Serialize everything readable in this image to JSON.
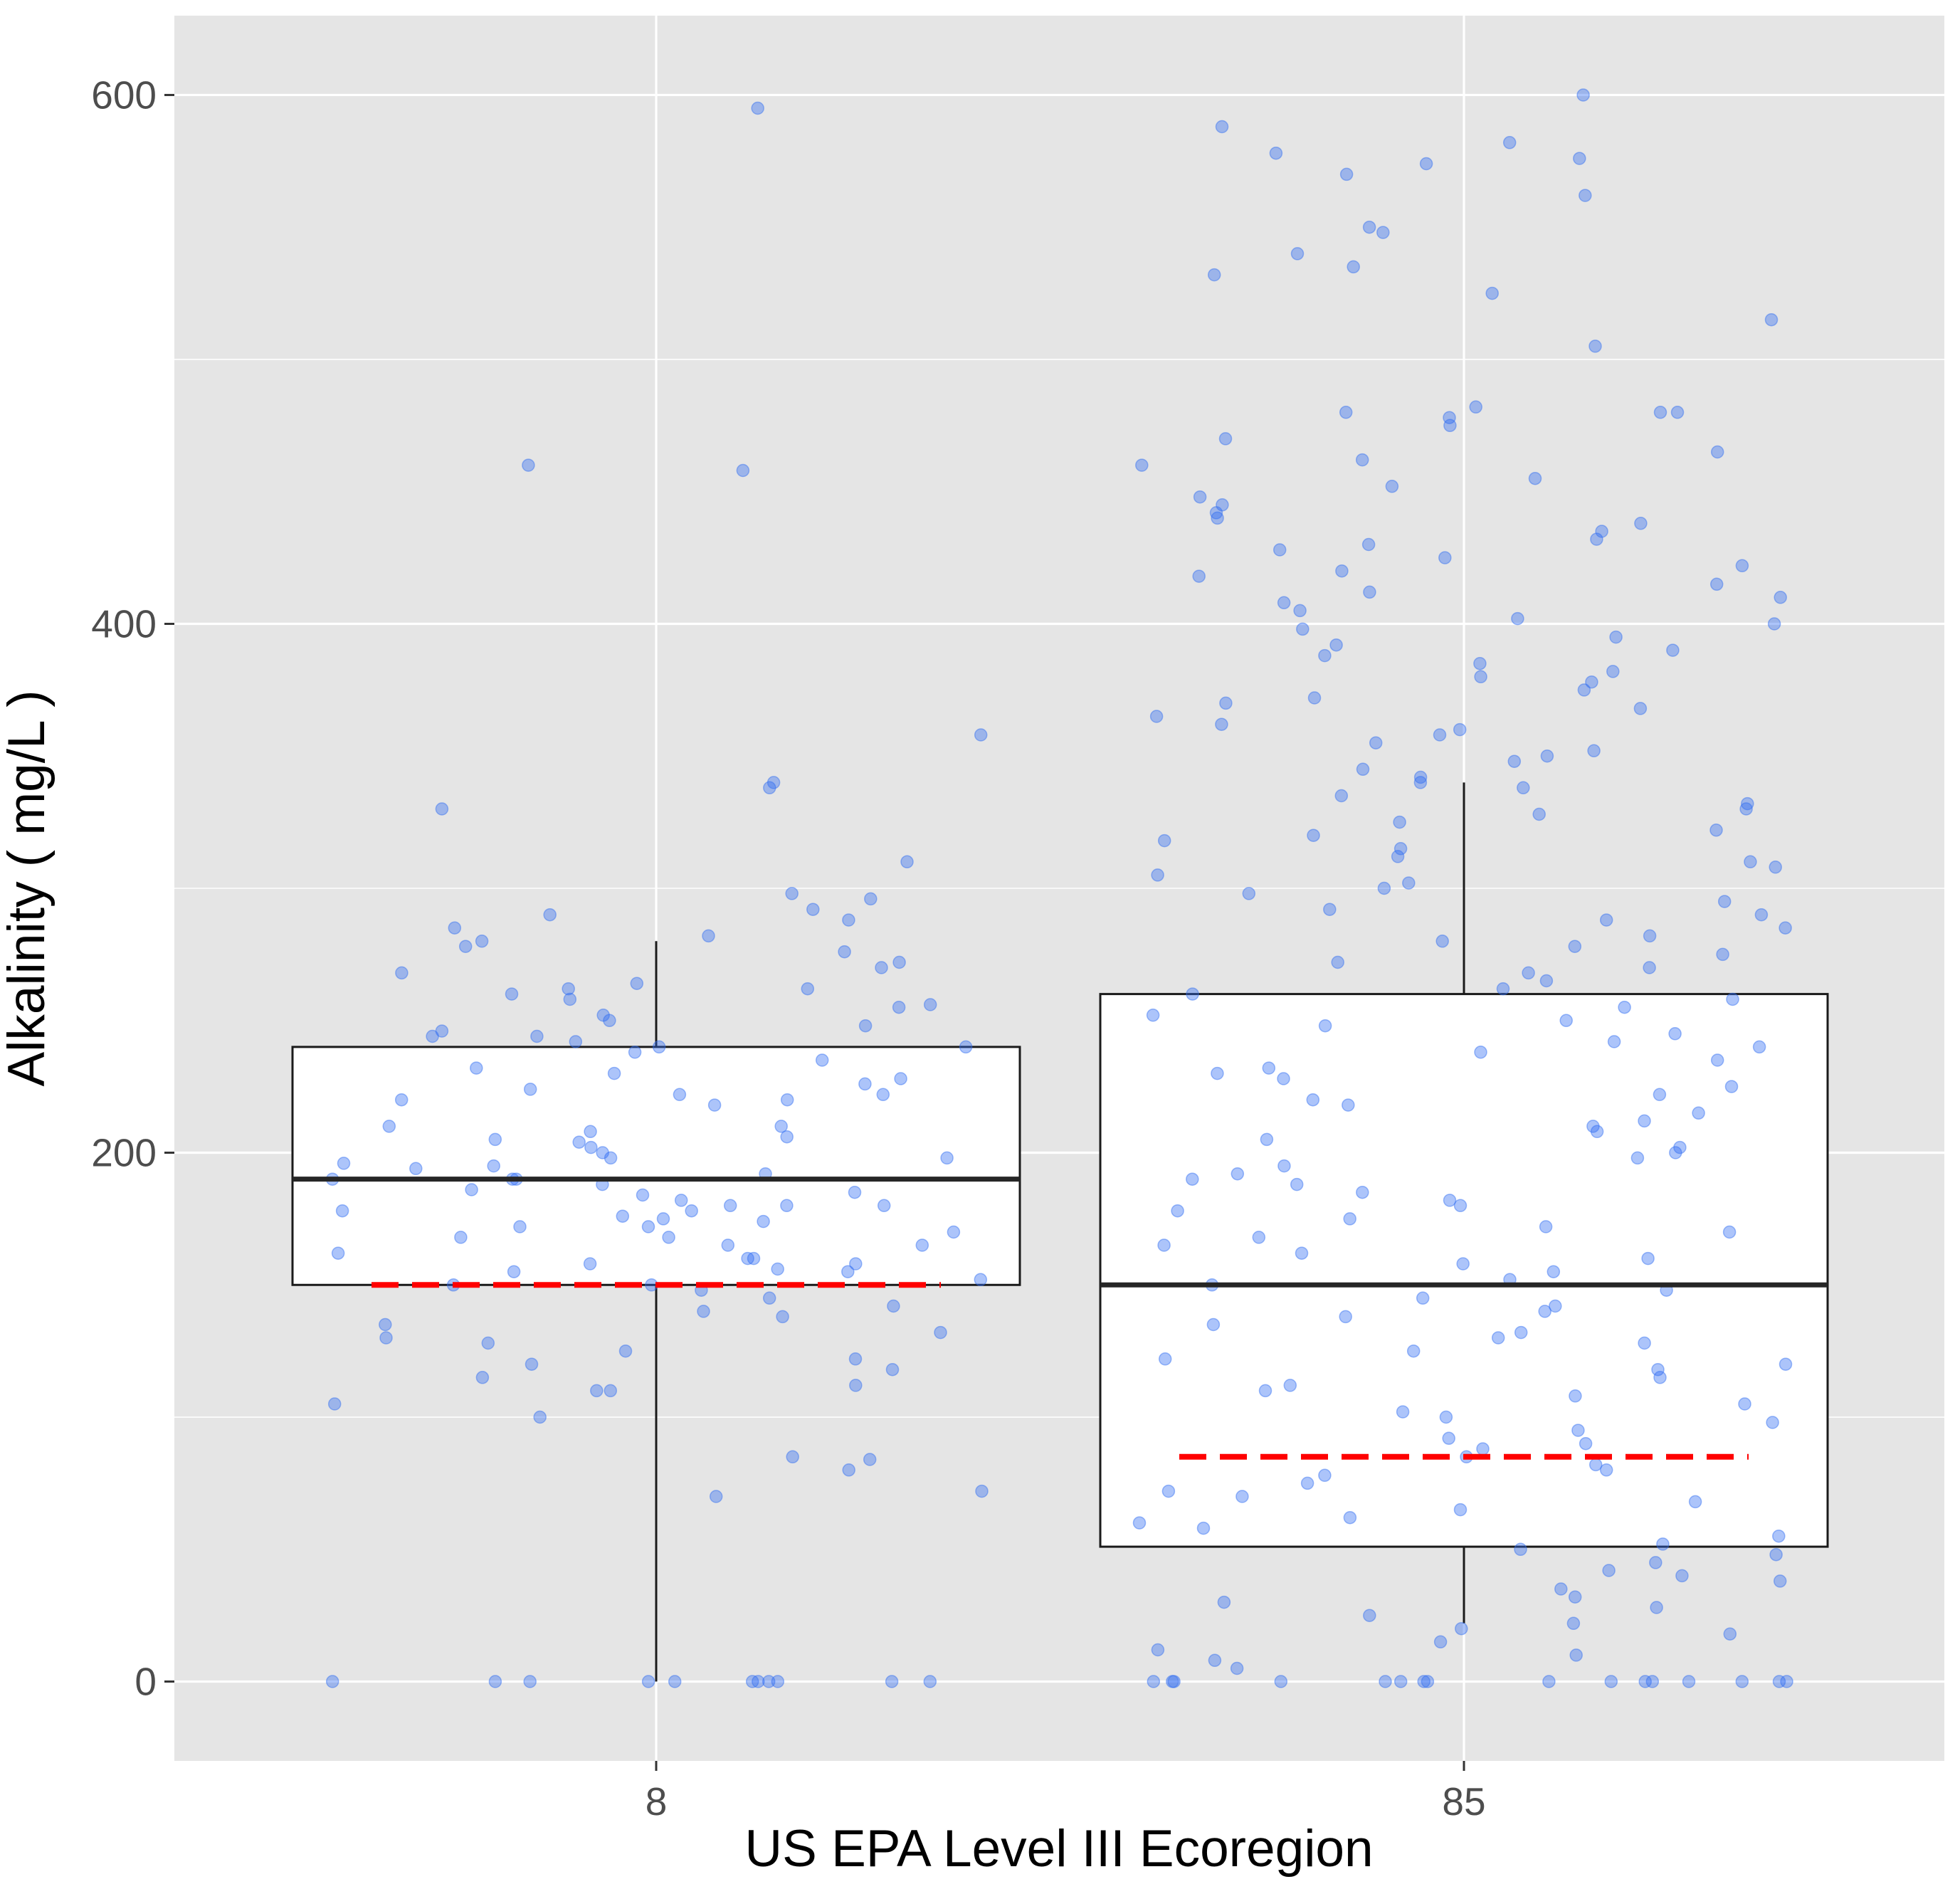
{
  "chart_data": {
    "type": "box",
    "xlabel": "US EPA Level III Ecoregion",
    "ylabel": "Alkalinity ( mg/L )",
    "categories": [
      "8",
      "85"
    ],
    "ylim": [
      -30,
      630
    ],
    "yticks": [
      0,
      200,
      400,
      600
    ],
    "grid": true,
    "legend": "none",
    "colors": {
      "panel": "#e5e5e5",
      "gridline": "#ffffff",
      "points": "#2f6cf2",
      "box_fill": "#ffffff",
      "box_line": "#1a1a1a",
      "dashed_line": "#ff0000"
    },
    "boxes": [
      {
        "category": "8",
        "lower_whisker": 0,
        "q1": 150,
        "median": 190,
        "q3": 240,
        "upper_whisker": 280,
        "dashed_value": 150
      },
      {
        "category": "85",
        "lower_whisker": 22,
        "q1": 51,
        "median": 150,
        "q3": 260,
        "upper_whisker": 340,
        "dashed_value": 85
      }
    ],
    "series": [
      {
        "category": "8",
        "values": [
          595,
          460,
          458,
          358,
          340,
          338,
          330,
          310,
          298,
          296,
          292,
          290,
          288,
          285,
          282,
          280,
          278,
          276,
          272,
          270,
          268,
          264,
          262,
          262,
          260,
          258,
          256,
          255,
          252,
          250,
          248,
          246,
          244,
          244,
          242,
          240,
          240,
          238,
          235,
          232,
          230,
          228,
          226,
          224,
          222,
          222,
          220,
          220,
          218,
          210,
          210,
          208,
          206,
          205,
          204,
          202,
          200,
          198,
          198,
          196,
          195,
          194,
          192,
          190,
          190,
          190,
          188,
          186,
          185,
          184,
          182,
          180,
          180,
          180,
          178,
          178,
          176,
          175,
          174,
          172,
          172,
          170,
          168,
          168,
          165,
          165,
          162,
          160,
          160,
          158,
          158,
          156,
          155,
          155,
          152,
          150,
          150,
          148,
          145,
          142,
          140,
          138,
          135,
          132,
          130,
          128,
          125,
          122,
          120,
          118,
          115,
          112,
          110,
          110,
          105,
          100,
          85,
          84,
          80,
          72,
          70,
          0,
          0,
          0,
          0,
          0,
          0,
          0,
          0,
          0,
          0,
          0
        ]
      },
      {
        "category": "85",
        "values": [
          600,
          588,
          582,
          578,
          576,
          574,
          570,
          562,
          550,
          548,
          540,
          535,
          532,
          525,
          515,
          505,
          482,
          480,
          480,
          480,
          478,
          475,
          470,
          465,
          462,
          460,
          455,
          452,
          448,
          445,
          442,
          440,
          438,
          435,
          432,
          430,
          428,
          425,
          422,
          420,
          418,
          415,
          412,
          410,
          408,
          405,
          402,
          400,
          398,
          395,
          392,
          390,
          388,
          385,
          382,
          380,
          378,
          375,
          372,
          370,
          368,
          365,
          362,
          360,
          358,
          355,
          352,
          350,
          348,
          345,
          342,
          340,
          338,
          335,
          332,
          330,
          328,
          325,
          322,
          320,
          318,
          315,
          312,
          310,
          308,
          305,
          302,
          300,
          298,
          295,
          292,
          290,
          288,
          285,
          282,
          280,
          278,
          275,
          272,
          270,
          268,
          265,
          262,
          260,
          258,
          255,
          252,
          250,
          248,
          245,
          242,
          240,
          238,
          235,
          232,
          230,
          228,
          225,
          222,
          220,
          218,
          215,
          212,
          210,
          208,
          205,
          202,
          200,
          198,
          195,
          192,
          190,
          188,
          185,
          182,
          180,
          178,
          175,
          172,
          170,
          168,
          165,
          162,
          160,
          158,
          155,
          152,
          150,
          148,
          145,
          142,
          140,
          138,
          135,
          132,
          130,
          128,
          125,
          122,
          120,
          118,
          115,
          112,
          110,
          108,
          105,
          102,
          100,
          98,
          95,
          92,
          90,
          88,
          85,
          82,
          80,
          78,
          75,
          72,
          70,
          68,
          65,
          62,
          60,
          58,
          55,
          52,
          50,
          48,
          45,
          42,
          40,
          38,
          35,
          32,
          30,
          28,
          25,
          22,
          20,
          18,
          15,
          12,
          10,
          8,
          5,
          0,
          0,
          0,
          0,
          0,
          0,
          0,
          0,
          0,
          0,
          0,
          0,
          0,
          0,
          0,
          0
        ]
      }
    ]
  }
}
